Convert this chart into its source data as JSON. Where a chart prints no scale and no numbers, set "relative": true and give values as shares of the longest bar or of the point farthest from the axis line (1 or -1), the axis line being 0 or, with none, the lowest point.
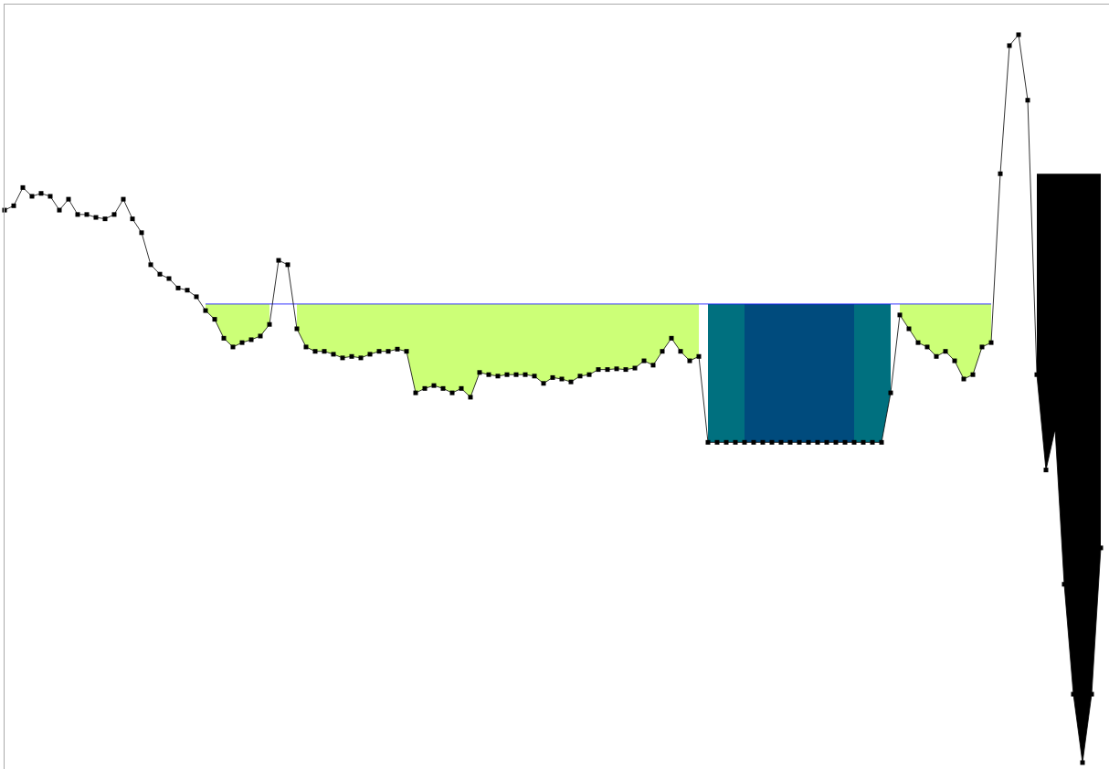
{
  "chart_data": {
    "type": "line",
    "relative": true,
    "marker": "square",
    "categories": [
      null,
      null,
      null,
      null,
      null,
      null,
      null,
      null,
      null,
      null,
      null,
      null,
      null,
      null,
      null,
      null,
      null,
      null,
      null,
      null,
      null,
      null,
      null,
      null,
      null,
      null,
      null,
      null,
      null,
      null,
      null,
      null,
      null,
      null,
      null,
      null,
      null,
      null,
      null,
      null,
      null,
      null,
      null,
      null,
      null,
      null,
      null,
      null,
      null,
      null,
      null,
      null,
      null,
      null,
      null,
      null,
      null,
      null,
      null,
      null,
      null,
      null,
      null,
      null,
      null,
      null,
      null,
      null,
      null,
      null,
      null,
      null,
      null,
      null,
      null,
      null,
      null,
      null,
      null,
      null,
      null,
      null,
      null,
      null,
      null,
      null,
      null,
      null,
      null,
      null,
      null,
      null,
      null,
      null,
      null,
      null,
      null,
      null,
      null,
      null,
      null,
      null,
      null,
      null,
      null,
      null,
      null,
      null,
      null,
      null,
      null,
      null,
      null,
      null,
      null,
      null,
      null,
      null,
      null,
      null,
      null
    ],
    "series": [
      {
        "type": "area",
        "color": "#ccff77",
        "marker": "none",
        "values": [
          null,
          null,
          null,
          null,
          null,
          null,
          null,
          null,
          null,
          null,
          null,
          null,
          null,
          null,
          null,
          null,
          null,
          null,
          null,
          null,
          null,
          null,
          0.63,
          0.63,
          0.63,
          0.63,
          0.63,
          0.63,
          0.63,
          0.63,
          null,
          null,
          0.63,
          0.63,
          0.63,
          0.63,
          0.63,
          0.63,
          0.63,
          0.63,
          0.63,
          0.63,
          0.63,
          0.63,
          0.63,
          0.63,
          0.63,
          0.63,
          0.63,
          0.63,
          0.63,
          0.63,
          0.63,
          0.63,
          0.63,
          0.63,
          0.63,
          0.63,
          0.63,
          0.63,
          0.63,
          0.63,
          0.63,
          0.63,
          0.63,
          0.63,
          0.63,
          0.63,
          0.63,
          0.63,
          0.63,
          0.63,
          0.63,
          0.63,
          0.63,
          0.63,
          0.63,
          null,
          null,
          null,
          null,
          null,
          null,
          null,
          null,
          null,
          null,
          null,
          null,
          null,
          null,
          null,
          null,
          null,
          null,
          null,
          null,
          null,
          0.63,
          0.63,
          0.63,
          0.63,
          0.63,
          0.63,
          0.63,
          0.63,
          0.63,
          0.63,
          0.63,
          null,
          null,
          null,
          null,
          null,
          null,
          null,
          null,
          null,
          null,
          null,
          null
        ]
      },
      {
        "type": "area",
        "color": "#00707f",
        "marker": "none",
        "values": [
          null,
          null,
          null,
          null,
          null,
          null,
          null,
          null,
          null,
          null,
          null,
          null,
          null,
          null,
          null,
          null,
          null,
          null,
          null,
          null,
          null,
          null,
          null,
          null,
          null,
          null,
          null,
          null,
          null,
          null,
          null,
          null,
          null,
          null,
          null,
          null,
          null,
          null,
          null,
          null,
          null,
          null,
          null,
          null,
          null,
          null,
          null,
          null,
          null,
          null,
          null,
          null,
          null,
          null,
          null,
          null,
          null,
          null,
          null,
          null,
          null,
          null,
          null,
          null,
          null,
          null,
          null,
          null,
          null,
          null,
          null,
          null,
          null,
          null,
          null,
          null,
          null,
          0.63,
          0.63,
          0.63,
          0.63,
          0.63,
          null,
          null,
          null,
          null,
          null,
          null,
          null,
          null,
          null,
          null,
          null,
          0.63,
          0.63,
          0.63,
          0.63,
          0.63,
          null,
          null,
          null,
          null,
          null,
          null,
          null,
          null,
          null,
          null,
          null,
          null,
          null,
          null,
          null,
          null,
          null,
          null,
          null,
          null,
          null,
          null,
          null
        ]
      },
      {
        "type": "area",
        "color": "#004b7d",
        "marker": "none",
        "values": [
          null,
          null,
          null,
          null,
          null,
          null,
          null,
          null,
          null,
          null,
          null,
          null,
          null,
          null,
          null,
          null,
          null,
          null,
          null,
          null,
          null,
          null,
          null,
          null,
          null,
          null,
          null,
          null,
          null,
          null,
          null,
          null,
          null,
          null,
          null,
          null,
          null,
          null,
          null,
          null,
          null,
          null,
          null,
          null,
          null,
          null,
          null,
          null,
          null,
          null,
          null,
          null,
          null,
          null,
          null,
          null,
          null,
          null,
          null,
          null,
          null,
          null,
          null,
          null,
          null,
          null,
          null,
          null,
          null,
          null,
          null,
          null,
          null,
          null,
          null,
          null,
          null,
          null,
          null,
          null,
          null,
          0.63,
          0.63,
          0.63,
          0.63,
          0.63,
          0.63,
          0.63,
          0.63,
          0.63,
          0.63,
          0.63,
          0.63,
          0.63,
          null,
          null,
          null,
          null,
          null,
          null,
          null,
          null,
          null,
          null,
          null,
          null,
          null,
          null,
          null,
          null,
          null,
          null,
          null,
          null,
          null,
          null,
          null,
          null,
          null,
          null,
          null
        ]
      },
      {
        "type": "area",
        "color": "#000000",
        "marker": "none",
        "values": [
          null,
          null,
          null,
          null,
          null,
          null,
          null,
          null,
          null,
          null,
          null,
          null,
          null,
          null,
          null,
          null,
          null,
          null,
          null,
          null,
          null,
          null,
          null,
          null,
          null,
          null,
          null,
          null,
          null,
          null,
          null,
          null,
          null,
          null,
          null,
          null,
          null,
          null,
          null,
          null,
          null,
          null,
          null,
          null,
          null,
          null,
          null,
          null,
          null,
          null,
          null,
          null,
          null,
          null,
          null,
          null,
          null,
          null,
          null,
          null,
          null,
          null,
          null,
          null,
          null,
          null,
          null,
          null,
          null,
          null,
          null,
          null,
          null,
          null,
          null,
          null,
          null,
          null,
          null,
          null,
          null,
          null,
          null,
          null,
          null,
          null,
          null,
          null,
          null,
          null,
          null,
          null,
          null,
          null,
          null,
          null,
          null,
          null,
          null,
          null,
          null,
          null,
          null,
          null,
          null,
          null,
          null,
          null,
          null,
          null,
          null,
          null,
          null,
          0.809,
          0.809,
          0.809,
          0.809,
          0.809,
          0.809,
          0.809,
          0.809
        ]
      },
      {
        "type": "line",
        "color": "#0000ff",
        "marker": "none",
        "values": [
          null,
          null,
          null,
          null,
          null,
          null,
          null,
          null,
          null,
          null,
          null,
          null,
          null,
          null,
          null,
          null,
          null,
          null,
          null,
          null,
          null,
          null,
          0.63,
          0.63,
          0.63,
          0.63,
          0.63,
          0.63,
          0.63,
          0.63,
          0.63,
          0.63,
          0.63,
          0.63,
          0.63,
          0.63,
          0.63,
          0.63,
          0.63,
          0.63,
          0.63,
          0.63,
          0.63,
          0.63,
          0.63,
          0.63,
          0.63,
          0.63,
          0.63,
          0.63,
          0.63,
          0.63,
          0.63,
          0.63,
          0.63,
          0.63,
          0.63,
          0.63,
          0.63,
          0.63,
          0.63,
          0.63,
          0.63,
          0.63,
          0.63,
          0.63,
          0.63,
          0.63,
          0.63,
          0.63,
          0.63,
          0.63,
          0.63,
          0.63,
          0.63,
          0.63,
          0.63,
          0.63,
          0.63,
          0.63,
          0.63,
          0.63,
          0.63,
          0.63,
          0.63,
          0.63,
          0.63,
          0.63,
          0.63,
          0.63,
          0.63,
          0.63,
          0.63,
          0.63,
          0.63,
          0.63,
          0.63,
          0.63,
          0.63,
          0.63,
          0.63,
          0.63,
          0.63,
          0.63,
          0.63,
          0.63,
          0.63,
          0.63,
          0.63,
          null,
          null,
          null,
          null,
          null,
          null,
          null,
          null,
          null,
          null,
          null,
          null
        ]
      },
      {
        "type": "line",
        "color": "#000000",
        "values": [
          0.759,
          0.765,
          0.79,
          0.778,
          0.782,
          0.778,
          0.759,
          0.774,
          0.753,
          0.753,
          0.749,
          0.747,
          0.753,
          0.774,
          0.747,
          0.728,
          0.684,
          0.671,
          0.665,
          0.652,
          0.649,
          0.64,
          0.621,
          0.609,
          0.583,
          0.571,
          0.577,
          0.581,
          0.586,
          0.602,
          0.69,
          0.684,
          0.596,
          0.571,
          0.565,
          0.565,
          0.561,
          0.556,
          0.558,
          0.556,
          0.561,
          0.565,
          0.565,
          0.568,
          0.565,
          0.508,
          0.514,
          0.518,
          0.514,
          0.508,
          0.514,
          0.502,
          0.536,
          0.533,
          0.531,
          0.533,
          0.533,
          0.533,
          0.531,
          0.521,
          0.529,
          0.527,
          0.523,
          0.531,
          0.533,
          0.54,
          0.54,
          0.541,
          0.54,
          0.542,
          0.552,
          0.546,
          0.565,
          0.583,
          0.565,
          0.552,
          0.558,
          0.44,
          0.44,
          0.44,
          0.44,
          0.44,
          0.44,
          0.44,
          0.44,
          0.44,
          0.44,
          0.44,
          0.44,
          0.44,
          0.44,
          0.44,
          0.44,
          0.44,
          0.44,
          0.44,
          0.44,
          0.508,
          0.615,
          0.596,
          0.577,
          0.571,
          0.558,
          0.565,
          0.552,
          0.527,
          0.533,
          0.571,
          0.577,
          0.809,
          0.985,
          1.0,
          0.91,
          0.533,
          0.402,
          0.458,
          0.245,
          0.094,
          0,
          0.094,
          0.295
        ]
      }
    ]
  }
}
